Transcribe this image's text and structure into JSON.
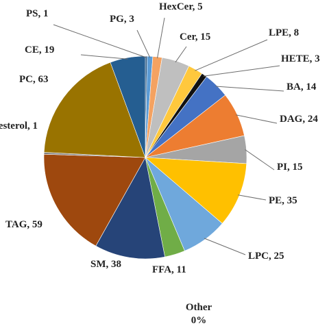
{
  "chart_data": {
    "type": "pie",
    "title": "",
    "slices": [
      {
        "label": "PS",
        "value": 1,
        "color": "#1f4e79"
      },
      {
        "label": "PG",
        "value": 3,
        "color": "#5b9bd5"
      },
      {
        "label": "HexCer",
        "value": 5,
        "color": "#f4a261"
      },
      {
        "label": "Cer",
        "value": 15,
        "color": "#bfbfbf"
      },
      {
        "label": "LPE",
        "value": 8,
        "color": "#ffc83d"
      },
      {
        "label": "HETE",
        "value": 3,
        "color": "#111111"
      },
      {
        "label": "BA",
        "value": 14,
        "color": "#4472c4"
      },
      {
        "label": "DAG",
        "value": 24,
        "color": "#ed7d31"
      },
      {
        "label": "PI",
        "value": 15,
        "color": "#a5a5a5"
      },
      {
        "label": "PE",
        "value": 35,
        "color": "#ffc000"
      },
      {
        "label": "LPC",
        "value": 25,
        "color": "#6fa8dc"
      },
      {
        "label": "FFA",
        "value": 11,
        "color": "#70ad47"
      },
      {
        "label": "SM",
        "value": 38,
        "color": "#264478"
      },
      {
        "label": "TAG",
        "value": 59,
        "color": "#9e480e"
      },
      {
        "label": "Cholesterol",
        "value": 1,
        "color": "#7f7f7f"
      },
      {
        "label": "PC",
        "value": 63,
        "color": "#997300"
      },
      {
        "label": "CE",
        "value": 19,
        "color": "#255e91"
      }
    ],
    "other": {
      "label": "Other",
      "value_label": "0%"
    }
  }
}
